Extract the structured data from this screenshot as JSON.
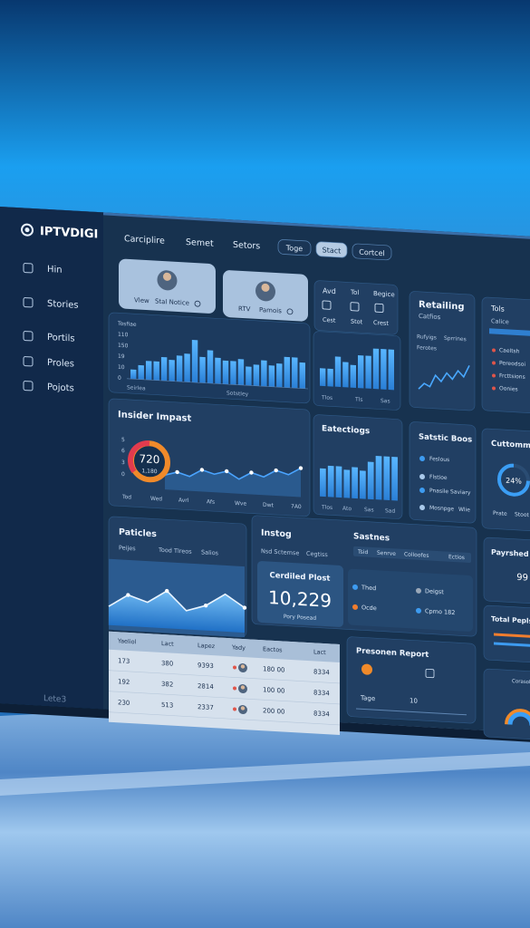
{
  "brand": "IPTVDIGI",
  "sidebar": [
    "Hin",
    "Stories",
    "Portils",
    "Proles",
    "Pojots"
  ],
  "sidebar_footer": "Lete3",
  "nav": [
    "Carciplire",
    "Semet",
    "Setors"
  ],
  "buttons": [
    "Toge",
    "Stact",
    "Cortcel"
  ],
  "profiles": [
    {
      "label": "Vlew",
      "name": "Stal Notice"
    },
    {
      "label": "RTV",
      "name": "Pamois"
    }
  ],
  "quick": {
    "title": "Avd",
    "items": [
      "Tol",
      "Begice",
      "Cest",
      "Stot",
      "Crest"
    ]
  },
  "activity": {
    "labels": [
      "Tosfiae",
      "110",
      "150",
      "19",
      "10",
      "0"
    ],
    "footer": [
      "Seirlea",
      "Sotstley"
    ],
    "ylim": [
      0,
      20
    ],
    "values": [
      4,
      6,
      8,
      8,
      10,
      9,
      11,
      12,
      18,
      11,
      14,
      11,
      10,
      10,
      11,
      8,
      9,
      11,
      9,
      10,
      13,
      13,
      11
    ]
  },
  "chart2": {
    "labels": [
      "Tlos",
      "Tls",
      "Sas"
    ],
    "ylim": [
      0,
      18
    ],
    "values": [
      7,
      7,
      12,
      10,
      9,
      13,
      13,
      16,
      16,
      16
    ]
  },
  "retailing": {
    "title": "Retailing",
    "sub": "Catfios",
    "rows": [
      "Rufyigs",
      "Sprrines",
      "Ferotes"
    ],
    "ylim": [
      0,
      14
    ],
    "values": [
      3,
      5,
      4,
      8,
      6,
      9,
      7,
      10,
      8,
      12
    ]
  },
  "side_top": {
    "items": [
      "Tols",
      "Calice",
      "Caeltsh",
      "Pereodsoi",
      "Frcttsions",
      "Oonies"
    ]
  },
  "insider": {
    "title": "Insider Impast",
    "donut_value": "720",
    "donut_label": "1,180",
    "ylabels": [
      "5",
      "6",
      "3",
      "0"
    ],
    "xlabels": [
      "Tod",
      "Wed",
      "Avrl",
      "Afs",
      "Wve",
      "Dwt",
      "7A0"
    ],
    "ylim": [
      0,
      10
    ],
    "values": [
      4,
      5,
      4,
      6,
      5,
      6,
      4,
      6,
      5,
      7,
      6,
      8
    ]
  },
  "eatectiogs": {
    "title": "Eatectiogs",
    "labels": [
      "Tlos",
      "Ato",
      "Sas",
      "Sad"
    ],
    "ylim": [
      0,
      16
    ],
    "values": [
      9,
      10,
      10,
      9,
      10,
      9,
      12,
      14,
      14,
      14
    ]
  },
  "satstic": {
    "title": "Satstic Boos",
    "items": [
      "Feslous",
      "Flstioe",
      "Pnasile Saviary",
      "Mosnpge"
    ],
    "tag": "Wlie"
  },
  "cuttommel": {
    "title": "Cuttommel",
    "donut": "24%",
    "items": [
      "Prate",
      "Stoot"
    ]
  },
  "paticles": {
    "title": "Paticles",
    "tabs": [
      "Peijes",
      "Tood Tlreos",
      "Salios"
    ],
    "ylim": [
      0,
      8
    ],
    "values": [
      3,
      5,
      4,
      6,
      3,
      4,
      6,
      4
    ]
  },
  "instog": {
    "title": "Instog",
    "sub": [
      "Nsd Sctemse",
      "Cegtiss"
    ],
    "tab_title": "Sastnes",
    "tabs": [
      "Tsid",
      "Senrve",
      "Colloofes",
      "Ectios"
    ],
    "card": {
      "title": "Cerdiled Plost",
      "value": "10,229",
      "caption": "Pory Posead"
    },
    "legend": [
      "Thed",
      "Deigst",
      "Ocde",
      "Cpmo 182"
    ]
  },
  "payrshed": {
    "title": "Payrshed",
    "value": "99"
  },
  "total": {
    "title": "Total Pepls"
  },
  "table": {
    "header": [
      "Yaeliol",
      "Lact",
      "Lapez",
      "Yady",
      "Eactos",
      "Lact"
    ],
    "rows": [
      [
        "173",
        "380",
        "9393",
        "180 00",
        "8334"
      ],
      [
        "192",
        "382",
        "2814",
        "100 00",
        "8334"
      ],
      [
        "230",
        "513",
        "2337",
        "200 00",
        "8334"
      ]
    ]
  },
  "report": {
    "title": "Presonen Report",
    "rows": [
      "Tage",
      "10"
    ]
  },
  "corner": {
    "title": "Corasolde"
  }
}
